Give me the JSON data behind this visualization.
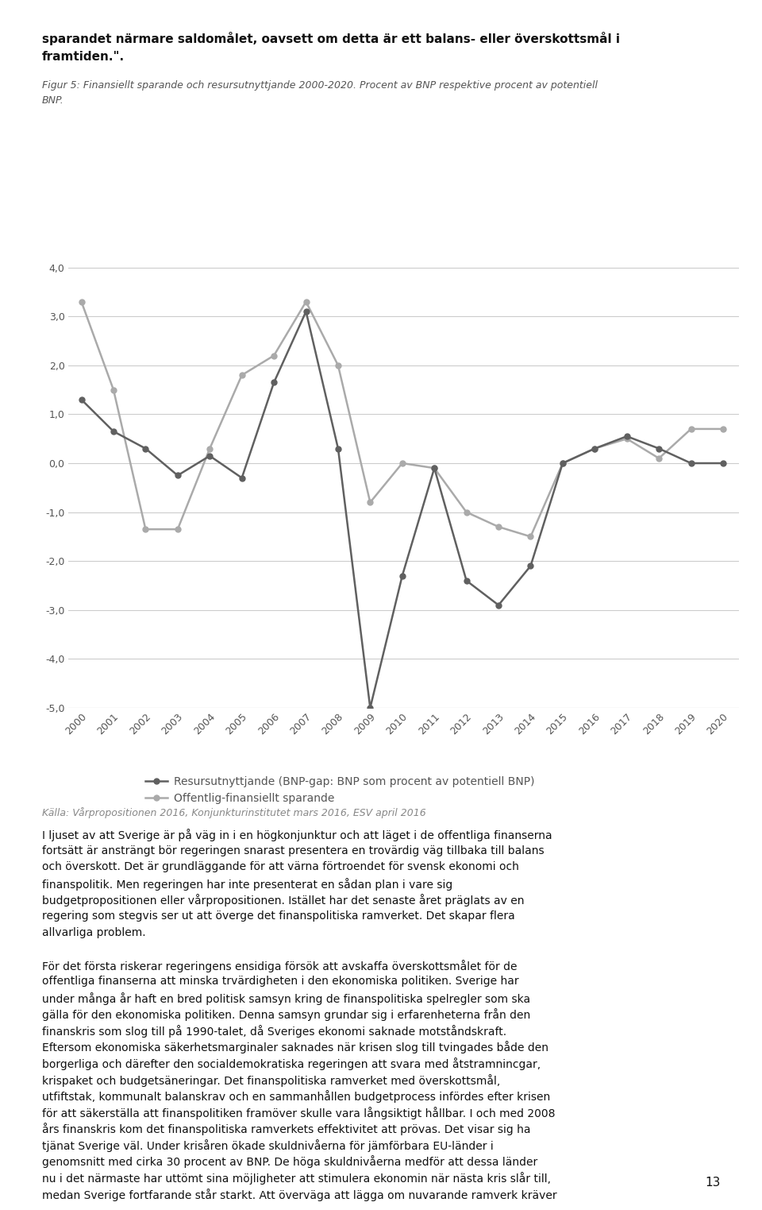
{
  "years": [
    2000,
    2001,
    2002,
    2003,
    2004,
    2005,
    2006,
    2007,
    2008,
    2009,
    2010,
    2011,
    2012,
    2013,
    2014,
    2015,
    2016,
    2017,
    2018,
    2019,
    2020
  ],
  "resursutnyttjande": [
    1.3,
    0.65,
    0.3,
    -0.25,
    0.15,
    -0.3,
    1.65,
    3.1,
    0.3,
    -5.0,
    -2.3,
    -0.1,
    -2.4,
    -2.9,
    -2.1,
    0.0,
    0.3,
    0.55,
    0.3,
    0.0,
    0.0
  ],
  "offentlig_sparande": [
    3.3,
    1.5,
    -1.35,
    -1.35,
    0.3,
    1.8,
    2.2,
    3.3,
    2.0,
    -0.8,
    0.0,
    -0.1,
    -1.0,
    -1.3,
    -1.5,
    0.0,
    0.3,
    0.5,
    0.1,
    0.7,
    0.7
  ],
  "resursutnyttjande_color": "#606060",
  "offentlig_sparande_color": "#aaaaaa",
  "ylim_min": -5.0,
  "ylim_max": 4.0,
  "yticks": [
    4.0,
    3.0,
    2.0,
    1.0,
    0.0,
    -1.0,
    -2.0,
    -3.0,
    -4.0,
    -5.0
  ],
  "grid_color": "#cccccc",
  "background_color": "#ffffff",
  "legend_resursutnyttjande": "Resursutnyttjande (BNP-gap: BNP som procent av potentiell BNP)",
  "legend_offentlig": "Offentlig-finansiellt sparande",
  "source_text": "Källa: Vårpropositionen 2016, Konjunkturinstitutet mars 2016, ESV april 2016",
  "subtitle_line1": "Figur 5: Finansiellt sparande och resursutnyttjande 2000-2020. Procent av BNP respektive procent av potentiell",
  "subtitle_line2": "BNP.",
  "header_line1": "sparandet närmare saldomålet, oavsett om detta är ett balans- eller överskottsmål i",
  "header_line2": "framtiden.\".",
  "body_text_1": "I ljuset av att Sverige är på väg in i en högkonjunktur och att läget i de offentliga finanserna fortsätt är ansträngt bör regeringen snarast presentera en trovErdig väg tillbaka till balans och överskott. Det är grundläggande för att värna förtroendet för svensk ekonomi och finanspolitik. Men regeringen har inte presenterat en sådan plan i vare sig budgetpropositionen eller vårpropositionen. Istället har det senaste året präglats av en regering som stegvis ser ut att överge det finanspolitiska ramverket. Det skapar flera allvarliga problem.",
  "page_number": "13",
  "marker_size": 5,
  "line_width": 1.8
}
